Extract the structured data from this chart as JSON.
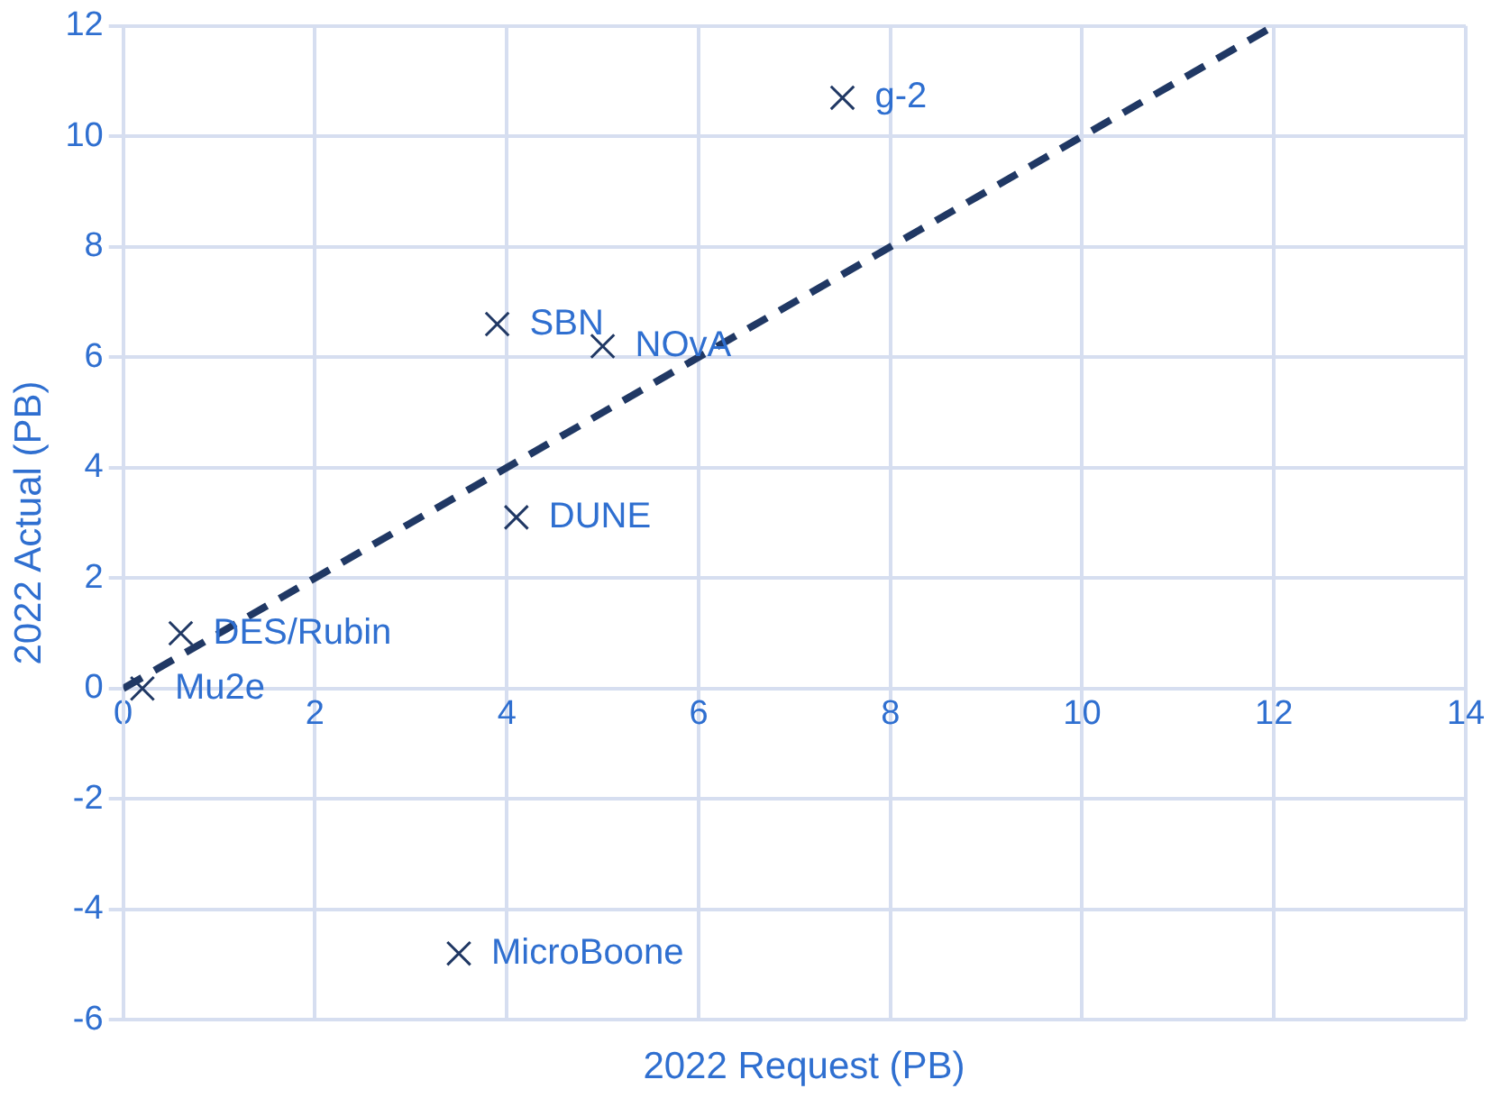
{
  "chart_data": {
    "type": "scatter",
    "xlabel": "2022 Request (PB)",
    "ylabel": "2022 Actual (PB)",
    "xlim": [
      0,
      14
    ],
    "xticks": [
      0,
      2,
      4,
      6,
      8,
      10,
      12,
      14
    ],
    "ylim": [
      -6,
      12
    ],
    "yticks": [
      -6,
      -4,
      -2,
      0,
      2,
      4,
      6,
      8,
      10,
      12
    ],
    "grid": true,
    "legend": false,
    "marker": "cross",
    "series": [
      {
        "color": "#203864",
        "x": [
          7.5,
          3.9,
          5.0,
          4.1,
          0.6,
          0.2,
          3.5
        ],
        "values": [
          10.7,
          6.6,
          6.2,
          3.1,
          1.0,
          0.0,
          -4.8
        ]
      },
      {
        "type": "line",
        "color": "#203864",
        "line_style": "dashed",
        "marker": "none",
        "x": [
          0,
          12
        ],
        "values": [
          0,
          12
        ]
      }
    ],
    "annotations": [
      {
        "text": "g-2",
        "x": 7.5,
        "y": 10.7
      },
      {
        "text": "SBN",
        "x": 3.9,
        "y": 6.6
      },
      {
        "text": "NOvA",
        "x": 5.0,
        "y": 6.2
      },
      {
        "text": "DUNE",
        "x": 4.1,
        "y": 3.1
      },
      {
        "text": "DES/Rubin",
        "x": 0.6,
        "y": 1.0
      },
      {
        "text": "Mu2e",
        "x": 0.2,
        "y": 0.0
      },
      {
        "text": "MicroBoone",
        "x": 3.5,
        "y": -4.8
      }
    ]
  }
}
